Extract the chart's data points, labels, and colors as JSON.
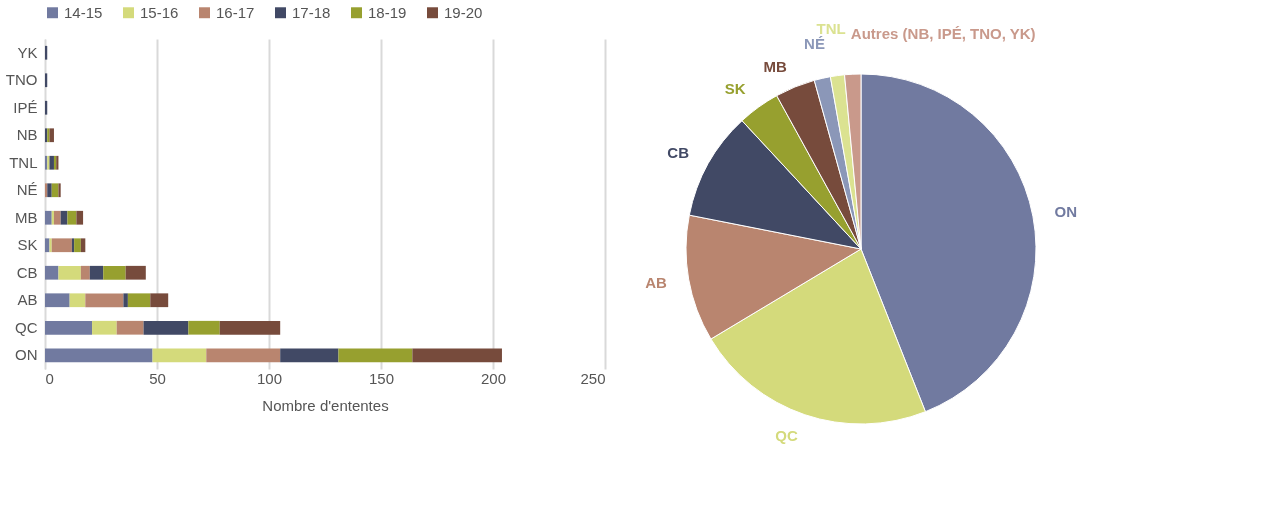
{
  "chart_data": [
    {
      "type": "bar",
      "orientation": "horizontal",
      "stacked": true,
      "xlabel": "Nombre d'ententes",
      "categories": [
        "YK",
        "TNO",
        "IPÉ",
        "NB",
        "TNL",
        "NÉ",
        "MB",
        "SK",
        "CB",
        "AB",
        "QC",
        "ON"
      ],
      "series": [
        {
          "name": "14-15",
          "color": "#717aa0",
          "values": [
            0,
            0,
            0,
            0,
            1,
            0,
            3,
            2,
            6,
            11,
            21,
            48
          ]
        },
        {
          "name": "15-16",
          "color": "#d4da7b",
          "values": [
            0,
            0,
            0,
            0,
            1,
            0,
            1,
            1,
            10,
            7,
            11,
            24
          ]
        },
        {
          "name": "16-17",
          "color": "#b9856f",
          "values": [
            0,
            0,
            0,
            0,
            0,
            1,
            3,
            9,
            4,
            17,
            12,
            33
          ]
        },
        {
          "name": "17-18",
          "color": "#414965",
          "values": [
            1,
            1,
            1,
            1,
            2,
            2,
            3,
            1,
            6,
            2,
            20,
            26
          ]
        },
        {
          "name": "18-19",
          "color": "#97a02f",
          "values": [
            0,
            0,
            0,
            1,
            1,
            3,
            4,
            3,
            10,
            10,
            14,
            33
          ]
        },
        {
          "name": "19-20",
          "color": "#774b3c",
          "values": [
            0,
            0,
            0,
            2,
            1,
            1,
            3,
            2,
            9,
            8,
            27,
            40
          ]
        }
      ],
      "xlim": [
        0,
        250
      ],
      "xticks": [
        0,
        50,
        100,
        150,
        200,
        250
      ],
      "grid": "x",
      "legend": "top"
    },
    {
      "type": "pie",
      "categories": [
        "ON",
        "QC",
        "AB",
        "CB",
        "SK",
        "MB",
        "NÉ",
        "TNL",
        "Autres (NB, IPÉ, TNO, YK)"
      ],
      "values": [
        44,
        22.4,
        11.7,
        10,
        3.9,
        3.7,
        1.5,
        1.3,
        1.5
      ],
      "colors": [
        "#717aa0",
        "#d4da7b",
        "#b9856f",
        "#414965",
        "#97a02f",
        "#774b3c",
        "#8b97b8",
        "#dbe291",
        "#c9998b"
      ]
    }
  ]
}
